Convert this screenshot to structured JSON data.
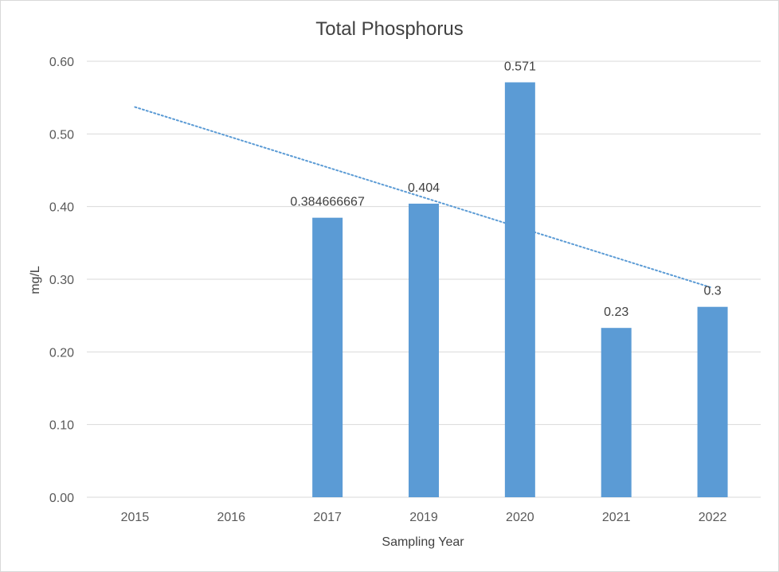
{
  "chart_data": {
    "type": "bar",
    "title": "Total Phosphorus",
    "xlabel": "Sampling Year",
    "ylabel": "mg/L",
    "categories": [
      "2015",
      "2016",
      "2017",
      "2019",
      "2020",
      "2021",
      "2022"
    ],
    "values": [
      null,
      null,
      0.384666667,
      0.404,
      0.571,
      0.233,
      0.262
    ],
    "data_labels": [
      "",
      "",
      "0.384666667",
      "0.404",
      "0.571",
      "0.23",
      "0.3"
    ],
    "ylim": [
      0,
      0.6
    ],
    "yticks": [
      "0.00",
      "0.10",
      "0.20",
      "0.30",
      "0.40",
      "0.50",
      "0.60"
    ],
    "grid": true,
    "trendline": {
      "type": "linear",
      "style": "dotted",
      "start": 0.537,
      "end": 0.288
    },
    "colors": {
      "bar": "#5b9bd5",
      "trendline": "#5b9bd5",
      "grid": "#d9d9d9"
    }
  }
}
